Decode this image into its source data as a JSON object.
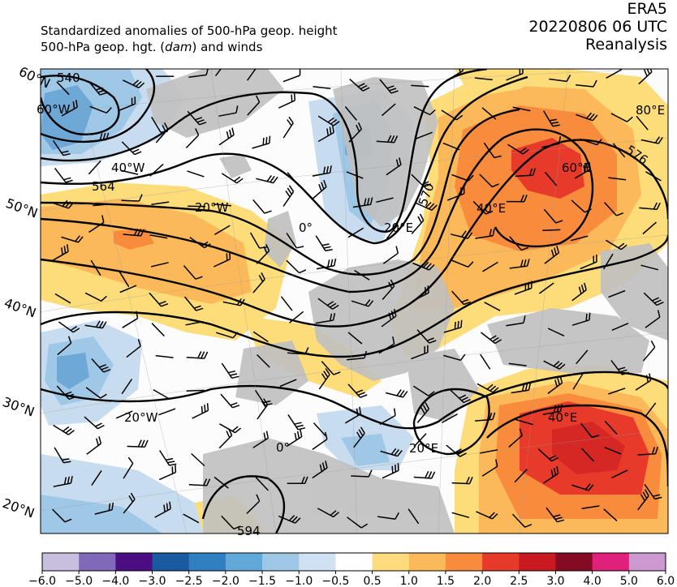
{
  "header": {
    "title_line1": "Standardized anomalies of 500-hPa geop. height",
    "title_line2_prefix": "500-hPa geop. hgt. (",
    "title_line2_unit": "dam",
    "title_line2_suffix": ") and winds",
    "dataset": "ERA5",
    "datetime": "20220806 06 UTC",
    "product": "Reanalysis"
  },
  "map": {
    "lat_labels": [
      "60°N",
      "50°N",
      "40°N",
      "30°N",
      "20°N"
    ],
    "lon_labels": [
      "60°W",
      "40°W",
      "20°W",
      "0°",
      "20°E",
      "40°E",
      "60°E",
      "80°E",
      "20°W",
      "0°",
      "20°E",
      "40°E"
    ],
    "contour_labels": [
      "540",
      "564",
      "570",
      "576",
      "594"
    ],
    "colors": {
      "land": "#c0c0c0",
      "ocean_neutral": "#fcfcfc",
      "anom_neg_0_5": "#c8dcf0",
      "anom_neg_1_0": "#9ec8e6",
      "anom_neg_1_5": "#6ea8d6",
      "anom_pos_0_5": "#fddc7a",
      "anom_pos_1_0": "#fcb95a",
      "anom_pos_1_5": "#f88c3c",
      "anom_pos_2_0": "#e83a2a",
      "anom_pos_2_5": "#c81a20"
    }
  },
  "colorbar": {
    "ticks": [
      "−6.0",
      "−5.0",
      "−4.0",
      "−3.0",
      "−2.5",
      "−2.0",
      "−1.5",
      "−1.0",
      "−0.5",
      "0.5",
      "1.0",
      "1.5",
      "2.0",
      "2.5",
      "3.0",
      "4.0",
      "5.0",
      "6.0"
    ],
    "colors": [
      "#c8bedd",
      "#8069b8",
      "#4b0e82",
      "#1a5aa0",
      "#2f7fc1",
      "#62a8d8",
      "#9ec8e6",
      "#cfe1f3",
      "#ffffff",
      "#fedc7e",
      "#fcb95a",
      "#f88c3c",
      "#e83a2a",
      "#c81a20",
      "#850a24",
      "#e0207a",
      "#cc99d0"
    ]
  }
}
